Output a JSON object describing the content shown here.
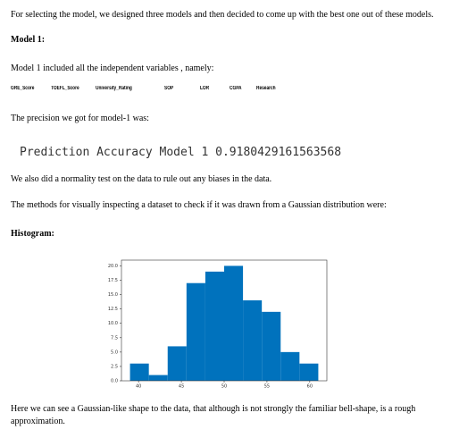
{
  "intro": "For selecting the model, we designed three models and then decided to come up with the best one out of these models.",
  "model_heading": "Model 1:",
  "model_text": "Model 1 included all the independent variables , namely:",
  "columns": [
    "GRE_Score",
    "TOEFL_Score",
    "University_Rating",
    "SOP",
    "LOR",
    "CGPA",
    "Research"
  ],
  "precision_text": "The precision we got for model-1 was:",
  "prediction": "Prediction Accuracy Model 1 0.9180429161563568",
  "normality_text": "We also did a normality test on the data to rule out any biases in the data.",
  "methods_text": "The methods for visually inspecting a dataset to check if it was drawn from a Gaussian distribution were:",
  "histogram_heading": "Histogram:",
  "chart_data": {
    "type": "histogram",
    "bins": [
      39,
      41.2,
      43.4,
      45.6,
      47.8,
      50,
      52.2,
      54.4,
      56.6,
      58.8,
      61
    ],
    "values": [
      3,
      1,
      6,
      17,
      19,
      20,
      14,
      12,
      5,
      3
    ],
    "color": "#0072bd",
    "xlim": [
      38,
      62
    ],
    "xticks": [
      40,
      45,
      50,
      55,
      60
    ],
    "ylim": [
      0,
      21
    ],
    "yticks": [
      {
        "value": 0,
        "label": "0.0"
      },
      {
        "value": 2.5,
        "label": "2.5"
      },
      {
        "value": 5,
        "label": "5.0"
      },
      {
        "value": 7.5,
        "label": "7.5"
      },
      {
        "value": 10,
        "label": "10.0"
      },
      {
        "value": 12.5,
        "label": "12.5"
      },
      {
        "value": 15,
        "label": "15.0"
      },
      {
        "value": 17.5,
        "label": "17.5"
      },
      {
        "value": 20,
        "label": "20.0"
      }
    ]
  },
  "conclusion": "Here we can see a Gaussian-like shape to the data, that although is not strongly the familiar bell-shape, is a rough approximation."
}
